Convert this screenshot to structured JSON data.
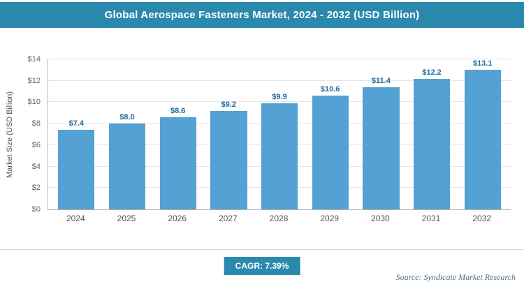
{
  "header": {
    "title": "Global Aerospace Fasteners Market, 2024 - 2032 (USD Billion)"
  },
  "chart_data": {
    "type": "bar",
    "title": "Global Aerospace Fasteners Market, 2024 - 2032 (USD Billion)",
    "categories": [
      "2024",
      "2025",
      "2026",
      "2027",
      "2028",
      "2029",
      "2030",
      "2031",
      "2032"
    ],
    "values": [
      7.4,
      8.0,
      8.6,
      9.2,
      9.9,
      10.6,
      11.4,
      12.2,
      13.1
    ],
    "value_labels": [
      "$7.4",
      "$8.0",
      "$8.6",
      "$9.2",
      "$9.9",
      "$10.6",
      "$11.4",
      "$12.2",
      "$13.1"
    ],
    "xlabel": "",
    "ylabel": "Market Size (USD Billion)",
    "ylim": [
      0,
      14
    ],
    "yticks": [
      0,
      2,
      4,
      6,
      8,
      10,
      12,
      14
    ],
    "ytick_labels": [
      "$0",
      "$2",
      "$4",
      "$6",
      "$8",
      "$10",
      "$12",
      "$14"
    ],
    "grid": true,
    "legend": "none"
  },
  "footer": {
    "cagr": "CAGR: 7.39%",
    "source": "Source: Syndicate Market Research"
  },
  "colors": {
    "header_bg": "#2b89ae",
    "bar": "#54a1d3",
    "value_label": "#1d6c9e",
    "badge_bg": "#2b89ae"
  }
}
